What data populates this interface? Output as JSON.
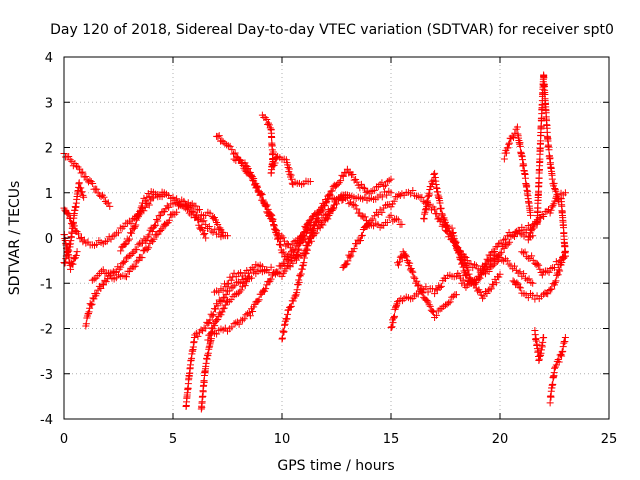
{
  "chart_data": {
    "type": "scatter",
    "title": "Day 120 of 2018, Sidereal Day-to-day VTEC variation (SDTVAR) for receiver spt0",
    "xlabel": "GPS time / hours",
    "ylabel": "SDTVAR / TECUs",
    "xlim": [
      0,
      25
    ],
    "ylim": [
      -4,
      4
    ],
    "xticks": [
      "0",
      "5",
      "10",
      "15",
      "20",
      "25"
    ],
    "yticks": [
      "-4",
      "-3",
      "-2",
      "-1",
      "0",
      "1",
      "2",
      "3",
      "4"
    ],
    "grid": true,
    "marker": "+",
    "series_color": "#ff0000",
    "tracks": [
      [
        [
          0,
          1.85
        ],
        [
          0.5,
          1.6
        ],
        [
          1.0,
          1.35
        ],
        [
          1.5,
          1.05
        ],
        [
          2.1,
          0.7
        ]
      ],
      [
        [
          0,
          0.7
        ],
        [
          0.3,
          0.4
        ],
        [
          0.6,
          0.1
        ],
        [
          1.0,
          -0.1
        ],
        [
          1.4,
          -0.15
        ],
        [
          1.9,
          -0.05
        ],
        [
          2.5,
          0.15
        ],
        [
          3.0,
          0.35
        ],
        [
          3.6,
          0.6
        ],
        [
          4.1,
          0.9
        ],
        [
          4.6,
          1.0
        ]
      ],
      [
        [
          0,
          -0.6
        ],
        [
          0.3,
          -0.1
        ],
        [
          0.5,
          0.6
        ],
        [
          0.7,
          1.2
        ],
        [
          0.9,
          0.9
        ]
      ],
      [
        [
          0,
          0.1
        ],
        [
          0.3,
          -0.65
        ],
        [
          0.6,
          -0.3
        ]
      ],
      [
        [
          1.0,
          -1.9
        ],
        [
          1.2,
          -1.5
        ],
        [
          1.5,
          -1.2
        ],
        [
          2.0,
          -0.9
        ],
        [
          2.6,
          -0.6
        ],
        [
          3.2,
          -0.3
        ],
        [
          3.8,
          0.0
        ],
        [
          4.3,
          0.4
        ],
        [
          4.8,
          0.7
        ],
        [
          5.3,
          0.8
        ],
        [
          5.8,
          0.75
        ],
        [
          6.3,
          0.55
        ],
        [
          6.8,
          0.5
        ],
        [
          7.3,
          0.05
        ]
      ],
      [
        [
          1.3,
          -0.9
        ],
        [
          1.8,
          -0.7
        ],
        [
          2.2,
          -0.85
        ],
        [
          2.8,
          -0.85
        ],
        [
          3.4,
          -0.5
        ],
        [
          4.0,
          -0.1
        ],
        [
          4.5,
          0.2
        ],
        [
          5.0,
          0.55
        ],
        [
          5.5,
          0.75
        ],
        [
          6.0,
          0.5
        ],
        [
          6.5,
          0.3
        ],
        [
          7.0,
          0.1
        ],
        [
          7.5,
          0.05
        ]
      ],
      [
        [
          2.6,
          -0.3
        ],
        [
          3.2,
          0.2
        ],
        [
          3.6,
          0.8
        ],
        [
          4.0,
          1.0
        ],
        [
          4.5,
          0.95
        ],
        [
          5.0,
          0.9
        ],
        [
          5.5,
          0.7
        ],
        [
          6.0,
          0.5
        ],
        [
          6.5,
          0.0
        ]
      ],
      [
        [
          5.6,
          -3.7
        ],
        [
          5.8,
          -2.8
        ],
        [
          6.0,
          -2.2
        ],
        [
          6.5,
          -1.95
        ],
        [
          7.0,
          -1.5
        ],
        [
          7.5,
          -1.2
        ],
        [
          8.0,
          -1.0
        ],
        [
          8.5,
          -0.85
        ],
        [
          9.0,
          -0.75
        ],
        [
          9.5,
          -0.7
        ],
        [
          10.0,
          -0.8
        ],
        [
          10.5,
          -0.5
        ],
        [
          11.0,
          -0.3
        ],
        [
          11.5,
          0.1
        ],
        [
          12.0,
          0.4
        ],
        [
          12.5,
          0.8
        ],
        [
          13.0,
          0.95
        ]
      ],
      [
        [
          6.3,
          -3.8
        ],
        [
          6.5,
          -2.8
        ],
        [
          6.8,
          -2.1
        ],
        [
          7.2,
          -2.05
        ],
        [
          7.8,
          -1.95
        ],
        [
          8.5,
          -1.7
        ],
        [
          9.0,
          -1.3
        ],
        [
          9.5,
          -0.9
        ],
        [
          10.0,
          -0.6
        ],
        [
          10.5,
          -0.3
        ],
        [
          11.0,
          0.1
        ],
        [
          11.5,
          0.5
        ],
        [
          12.0,
          0.8
        ],
        [
          12.5,
          1.2
        ],
        [
          13.0,
          1.5
        ],
        [
          13.5,
          1.2
        ],
        [
          14.0,
          0.95
        ],
        [
          14.5,
          1.15
        ],
        [
          15.0,
          1.3
        ]
      ],
      [
        [
          6.6,
          -2.2
        ],
        [
          7.0,
          -1.8
        ],
        [
          7.5,
          -1.4
        ],
        [
          8.0,
          -1.2
        ],
        [
          8.5,
          -0.9
        ]
      ],
      [
        [
          6.9,
          -1.2
        ],
        [
          7.3,
          -1.1
        ],
        [
          7.8,
          -0.8
        ],
        [
          8.3,
          -0.8
        ],
        [
          8.8,
          -0.6
        ],
        [
          9.3,
          -0.7
        ]
      ],
      [
        [
          7.0,
          2.3
        ],
        [
          7.3,
          2.1
        ],
        [
          7.7,
          1.95
        ],
        [
          8.0,
          1.8
        ],
        [
          8.5,
          1.4
        ],
        [
          9.0,
          1.0
        ],
        [
          9.5,
          0.5
        ],
        [
          10.0,
          -0.3
        ],
        [
          10.3,
          -0.5
        ],
        [
          10.6,
          -0.4
        ],
        [
          11.0,
          0.0
        ],
        [
          11.5,
          0.3
        ],
        [
          12.0,
          0.5
        ],
        [
          12.5,
          0.8
        ],
        [
          13.0,
          1.0
        ],
        [
          13.5,
          0.9
        ],
        [
          14.0,
          0.85
        ],
        [
          14.5,
          0.95
        ],
        [
          15.0,
          1.0
        ]
      ],
      [
        [
          7.8,
          1.8
        ],
        [
          8.3,
          1.6
        ],
        [
          8.8,
          1.2
        ],
        [
          9.3,
          0.6
        ],
        [
          9.8,
          0.1
        ],
        [
          10.3,
          -0.2
        ],
        [
          10.8,
          0.0
        ],
        [
          11.3,
          0.4
        ]
      ],
      [
        [
          9.1,
          2.7
        ],
        [
          9.3,
          2.6
        ],
        [
          9.5,
          2.4
        ],
        [
          9.6,
          1.6
        ],
        [
          9.8,
          1.8
        ],
        [
          10.2,
          1.7
        ],
        [
          10.5,
          1.2
        ],
        [
          11.0,
          1.2
        ],
        [
          11.3,
          1.25
        ]
      ],
      [
        [
          9.5,
          1.4
        ],
        [
          9.6,
          1.9
        ]
      ],
      [
        [
          10.0,
          -2.2
        ],
        [
          10.3,
          -1.6
        ],
        [
          10.6,
          -1.3
        ],
        [
          11.0,
          -0.5
        ],
        [
          11.4,
          0.2
        ],
        [
          11.8,
          0.6
        ],
        [
          12.2,
          0.9
        ],
        [
          12.6,
          0.9
        ],
        [
          13.0,
          0.85
        ],
        [
          13.5,
          0.6
        ],
        [
          14.0,
          0.3
        ],
        [
          14.5,
          0.25
        ],
        [
          15.0,
          0.45
        ],
        [
          15.5,
          0.3
        ]
      ],
      [
        [
          12.8,
          -0.7
        ],
        [
          13.2,
          -0.3
        ],
        [
          13.6,
          0.0
        ],
        [
          14.0,
          0.4
        ],
        [
          14.5,
          0.6
        ],
        [
          15.0,
          0.75
        ],
        [
          15.5,
          1.0
        ],
        [
          16.0,
          1.0
        ],
        [
          16.5,
          0.85
        ],
        [
          17.0,
          0.6
        ],
        [
          17.5,
          0.2
        ],
        [
          18.0,
          -0.2
        ],
        [
          18.5,
          -0.5
        ],
        [
          19.0,
          -0.7
        ],
        [
          19.5,
          -0.6
        ],
        [
          20.0,
          -0.3
        ],
        [
          20.5,
          0.0
        ],
        [
          21.0,
          0.2
        ],
        [
          21.5,
          0.3
        ]
      ],
      [
        [
          15.0,
          -2.0
        ],
        [
          15.3,
          -1.4
        ],
        [
          15.6,
          -1.3
        ],
        [
          16.0,
          -1.3
        ],
        [
          16.5,
          -1.1
        ],
        [
          17.0,
          -1.2
        ],
        [
          17.5,
          -0.9
        ],
        [
          18.0,
          -0.8
        ],
        [
          18.5,
          -1.1
        ],
        [
          19.0,
          -0.9
        ],
        [
          19.5,
          -0.4
        ],
        [
          20.0,
          -0.1
        ],
        [
          20.5,
          0.1
        ],
        [
          21.0,
          0.1
        ],
        [
          21.5,
          0.05
        ]
      ],
      [
        [
          15.3,
          -0.6
        ],
        [
          15.6,
          -0.3
        ],
        [
          16.0,
          -0.8
        ],
        [
          16.5,
          -1.3
        ],
        [
          17.0,
          -1.7
        ],
        [
          17.5,
          -1.5
        ],
        [
          18.0,
          -1.25
        ]
      ],
      [
        [
          16.5,
          0.4
        ],
        [
          16.8,
          1.1
        ],
        [
          17.0,
          1.4
        ],
        [
          17.3,
          0.6
        ],
        [
          17.6,
          0.2
        ],
        [
          18.0,
          -0.2
        ],
        [
          18.4,
          -0.6
        ],
        [
          18.8,
          -1.0
        ],
        [
          19.2,
          -1.3
        ],
        [
          19.6,
          -1.1
        ],
        [
          20.0,
          -0.8
        ]
      ],
      [
        [
          17.8,
          0.2
        ],
        [
          18.2,
          -0.5
        ],
        [
          18.6,
          -1.0
        ],
        [
          19.0,
          -0.9
        ],
        [
          19.5,
          -0.7
        ],
        [
          20.0,
          -0.4
        ],
        [
          20.5,
          -0.6
        ],
        [
          21.0,
          -0.8
        ],
        [
          21.5,
          -1.0
        ]
      ],
      [
        [
          20.2,
          1.8
        ],
        [
          20.5,
          2.2
        ],
        [
          20.8,
          2.4
        ],
        [
          21.0,
          1.8
        ],
        [
          21.2,
          1.2
        ],
        [
          21.4,
          0.5
        ]
      ],
      [
        [
          20.6,
          -0.9
        ],
        [
          21.0,
          -1.2
        ],
        [
          21.5,
          -1.3
        ],
        [
          22.0,
          -1.3
        ],
        [
          22.5,
          -1.0
        ],
        [
          23.0,
          -0.3
        ]
      ],
      [
        [
          21.0,
          -0.3
        ],
        [
          21.3,
          -0.4
        ],
        [
          21.6,
          -0.5
        ],
        [
          22.0,
          -0.8
        ],
        [
          22.5,
          -0.6
        ],
        [
          23.0,
          -0.4
        ]
      ],
      [
        [
          21.3,
          0.0
        ],
        [
          21.6,
          0.3
        ],
        [
          22.0,
          0.5
        ],
        [
          22.3,
          0.6
        ],
        [
          22.6,
          0.9
        ],
        [
          23.0,
          1.0
        ]
      ],
      [
        [
          21.6,
          -2.1
        ],
        [
          21.8,
          -2.7
        ],
        [
          22.0,
          -2.2
        ]
      ],
      [
        [
          22.3,
          -3.6
        ],
        [
          22.5,
          -2.9
        ],
        [
          22.8,
          -2.6
        ],
        [
          23.0,
          -2.2
        ]
      ],
      [
        [
          21.7,
          0.3
        ],
        [
          21.9,
          2.6
        ],
        [
          22.0,
          3.6
        ],
        [
          22.2,
          2.1
        ],
        [
          22.4,
          1.3
        ],
        [
          22.7,
          0.8
        ]
      ],
      [
        [
          22.8,
          0.9
        ],
        [
          22.9,
          0.3
        ],
        [
          23.0,
          -0.4
        ]
      ]
    ]
  }
}
